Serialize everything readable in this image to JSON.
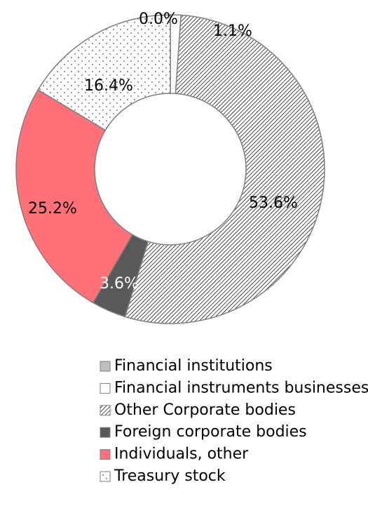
{
  "chart_data": {
    "type": "donut",
    "categories": [
      "Financial institutions",
      "Financial instruments businesses",
      "Other Corporate bodies",
      "Foreign corporate bodies",
      "Individuals, other",
      "Treasury stock"
    ],
    "values": [
      0.0,
      1.1,
      53.6,
      3.6,
      25.2,
      16.4
    ],
    "value_labels": [
      "0.0%",
      "1.1%",
      "53.6%",
      "3.6%",
      "25.2%",
      "16.4%"
    ],
    "colors": [
      "#bfbfbf",
      "#ffffff",
      "#ffffff",
      "#595959",
      "#ff7077",
      "#ffffff"
    ],
    "patterns": [
      null,
      null,
      "diagonal-hatch",
      null,
      null,
      "dots"
    ],
    "legend": "bottom"
  }
}
